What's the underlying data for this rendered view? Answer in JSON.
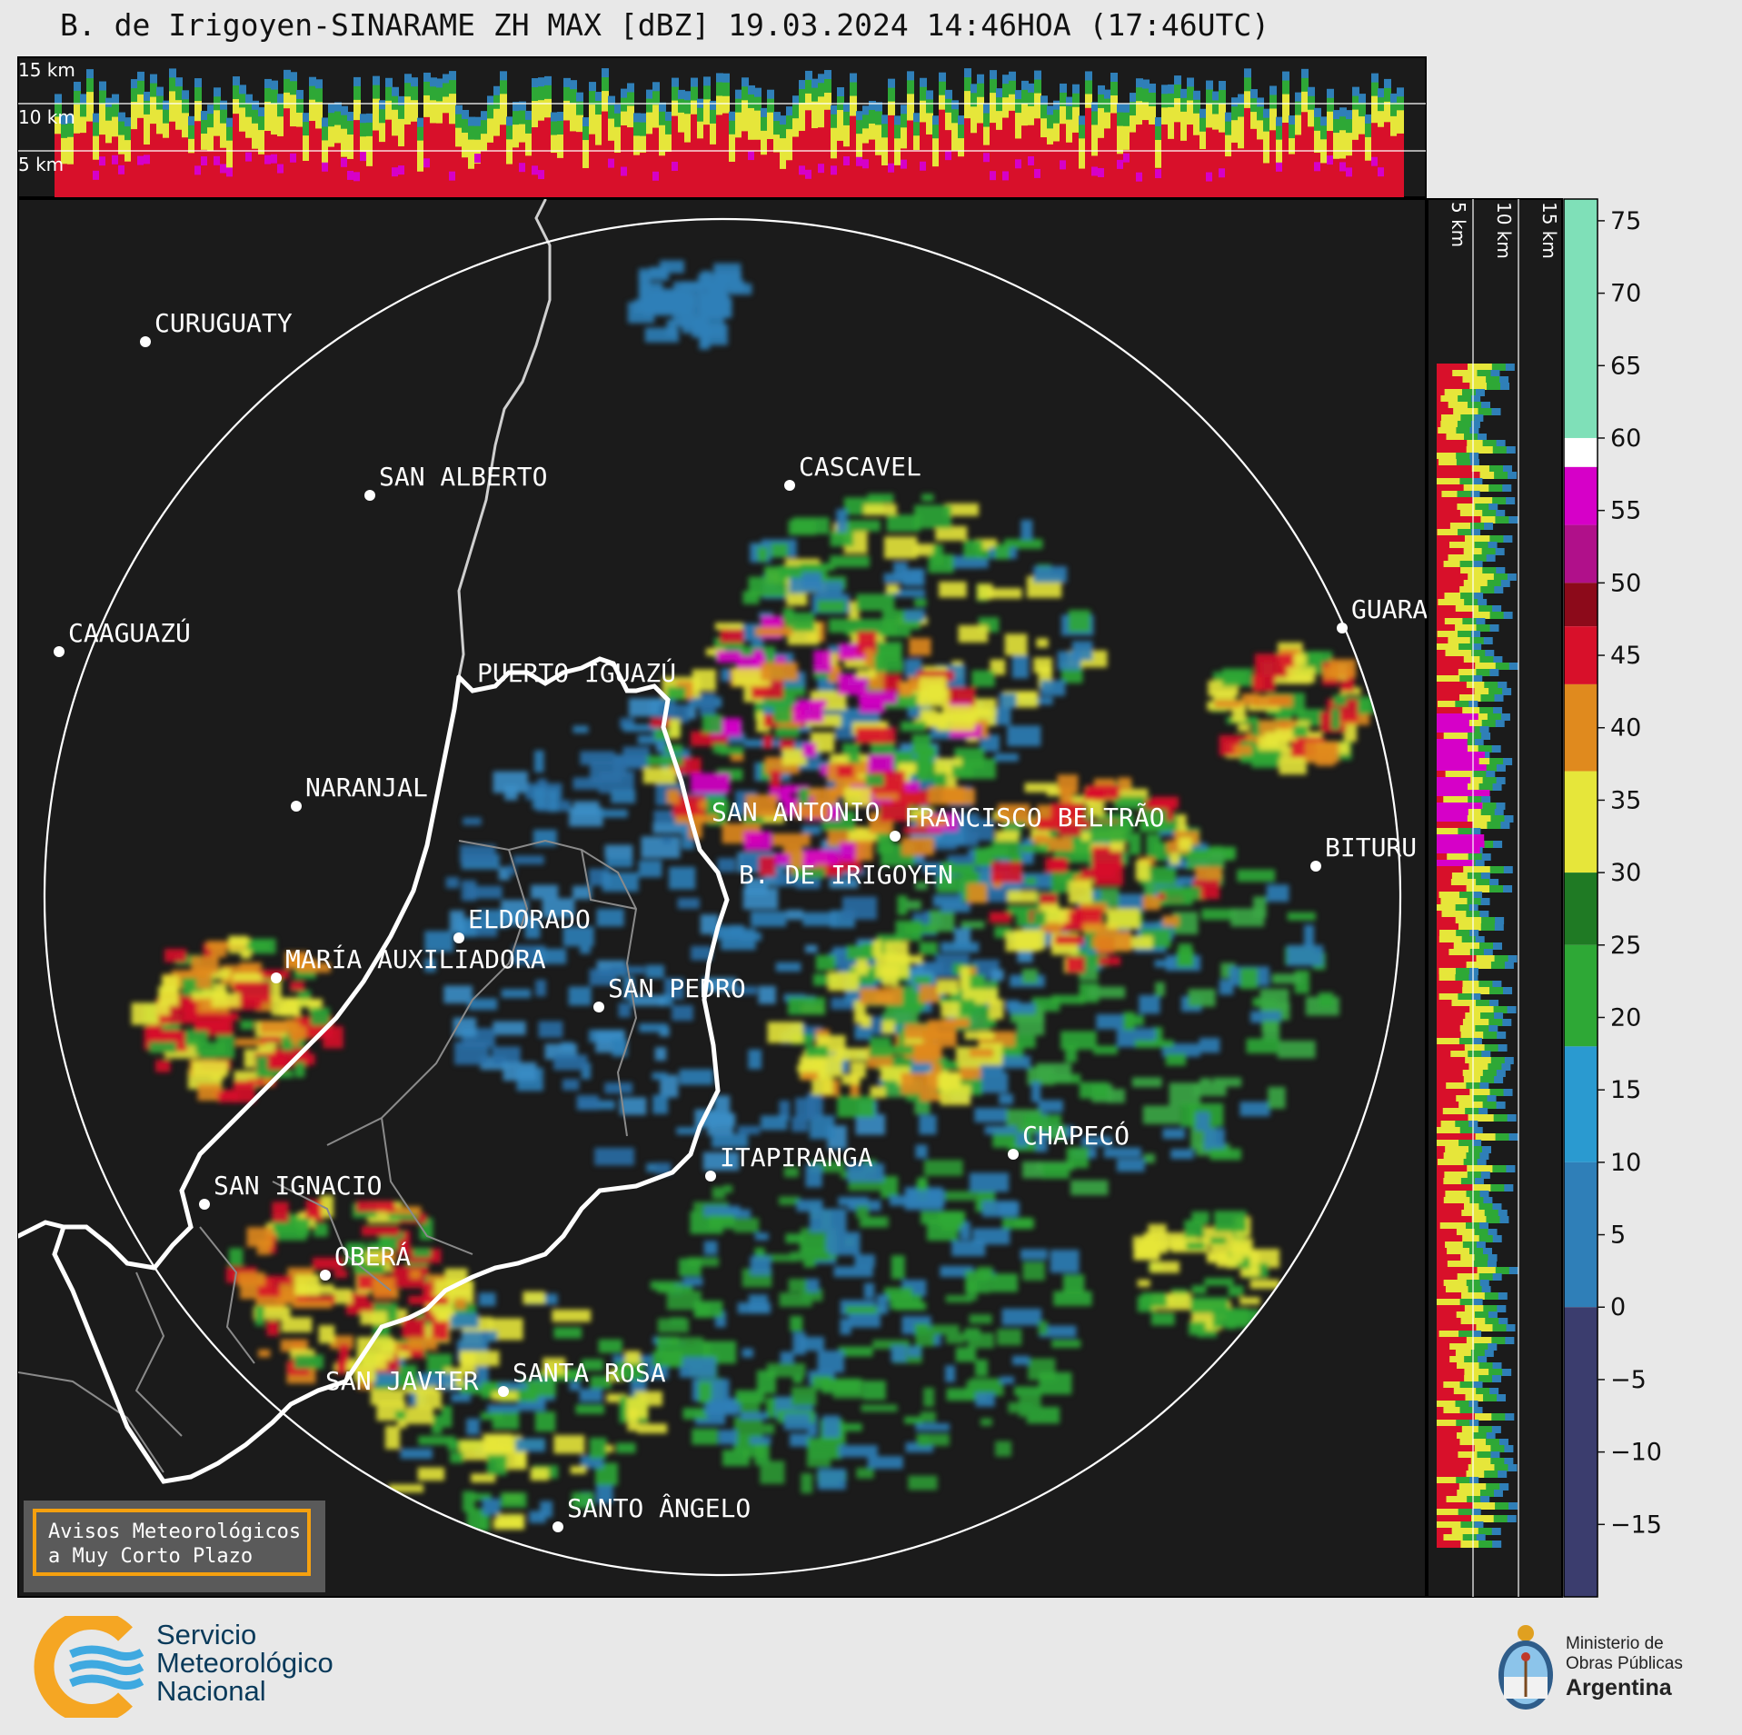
{
  "title": "B. de Irigoyen-SINARAME ZH MAX [dBZ] 19.03.2024 14:46HOA (17:46UTC)",
  "top_panel": {
    "height_labels": [
      "15 km",
      "10 km",
      "5 km"
    ]
  },
  "side_panel": {
    "height_labels": [
      "5 km",
      "10 km",
      "15 km"
    ]
  },
  "colorbar": {
    "unit": "dBZ",
    "ticks": [
      "75",
      "70",
      "65",
      "60",
      "55",
      "50",
      "45",
      "40",
      "35",
      "30",
      "25",
      "20",
      "15",
      "10",
      "5",
      "0",
      "−5",
      "−10",
      "−15"
    ],
    "colors": {
      "negative": "#3b3d6e",
      "blue": "#2f7fb8",
      "green": "#2ea836",
      "yellow": "#e6e63a",
      "orange": "#e08a1e",
      "red": "#d8102a",
      "darkred": "#8c0a1a",
      "magenta": "#d600c8",
      "white": "#ffffff",
      "teal": "#7fe0b8"
    }
  },
  "cities": [
    {
      "name": "CURUGUATY"
    },
    {
      "name": "SAN ALBERTO"
    },
    {
      "name": "CASCAVEL"
    },
    {
      "name": "CAAGUAZÚ"
    },
    {
      "name": "GUARA"
    },
    {
      "name": "PUERTO IGUAZÚ"
    },
    {
      "name": "NARANJAL"
    },
    {
      "name": "SAN ANTONIO"
    },
    {
      "name": "FRANCISCO BELTRÃO"
    },
    {
      "name": "BITURU"
    },
    {
      "name": "B. DE IRIGOYEN"
    },
    {
      "name": "ELDORADO"
    },
    {
      "name": "MARÍA AUXILIADORA"
    },
    {
      "name": "SAN PEDRO"
    },
    {
      "name": "CHAPECÓ"
    },
    {
      "name": "ITAPIRANGA"
    },
    {
      "name": "SAN IGNACIO"
    },
    {
      "name": "OBERÁ"
    },
    {
      "name": "SAN JAVIER"
    },
    {
      "name": "SANTA ROSA"
    },
    {
      "name": "SANTO ÂNGELO"
    }
  ],
  "avisos": {
    "line1": "Avisos Meteorológicos",
    "line2": "a Muy Corto Plazo"
  },
  "smn": {
    "line1": "Servicio",
    "line2": "Meteorológico",
    "line3": "Nacional"
  },
  "ministry": {
    "line1": "Ministerio de",
    "line2": "Obras Públicas",
    "line3": "Argentina"
  }
}
